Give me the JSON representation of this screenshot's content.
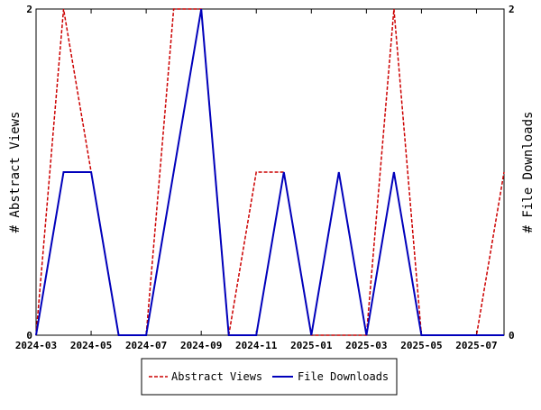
{
  "chart_data": {
    "type": "line",
    "x": [
      "2024-03",
      "2024-04",
      "2024-05",
      "2024-06",
      "2024-07",
      "2024-08",
      "2024-09",
      "2024-10",
      "2024-11",
      "2024-12",
      "2025-01",
      "2025-02",
      "2025-03",
      "2025-04",
      "2025-05",
      "2025-06",
      "2025-07",
      "2025-08"
    ],
    "x_tick_labels": [
      "2024-03",
      "2024-05",
      "2024-07",
      "2024-09",
      "2024-11",
      "2025-01",
      "2025-03",
      "2025-05",
      "2025-07"
    ],
    "y_tick_labels_left": [
      "0",
      "2"
    ],
    "y_tick_labels_right": [
      "0",
      "2"
    ],
    "ylim": [
      0,
      2
    ],
    "ylabel_left": "# Abstract Views",
    "ylabel_right": "# File Downloads",
    "legend_position": "bottom-center",
    "series": [
      {
        "name": "Abstract Views",
        "color": "#cc0000",
        "style": "dashed",
        "values": [
          0,
          2,
          1,
          0,
          0,
          2,
          2,
          0,
          1,
          1,
          0,
          0,
          0,
          2,
          0,
          0,
          0,
          1
        ]
      },
      {
        "name": "File Downloads",
        "color": "#0000bb",
        "style": "solid",
        "values": [
          0,
          1,
          1,
          0,
          0,
          1,
          2,
          0,
          0,
          1,
          0,
          1,
          0,
          1,
          0,
          0,
          0,
          0
        ]
      }
    ]
  }
}
